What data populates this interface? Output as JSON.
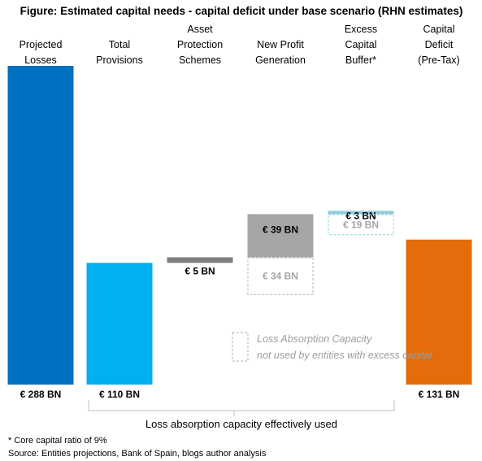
{
  "chart_data": {
    "type": "waterfall",
    "title": "Figure: Estimated capital needs - capital deficit under base scenario (RHN estimates)",
    "unit": "€ BN",
    "ylim": [
      0,
      288
    ],
    "categories": [
      [
        "Projected",
        "Losses"
      ],
      [
        "Total",
        "Provisions"
      ],
      [
        "Asset",
        "Protection",
        "Schemes"
      ],
      [
        "New Profit",
        "Generation"
      ],
      [
        "Excess",
        "Capital",
        "Buffer*"
      ],
      [
        "Capital",
        "Deficit",
        "(Pre-Tax)"
      ]
    ],
    "steps": [
      {
        "kind": "total",
        "value": 288,
        "label": "€ 288 BN",
        "color": "#0070c0"
      },
      {
        "kind": "used",
        "value": 110,
        "label": "€ 110 BN",
        "color": "#00b0f0"
      },
      {
        "kind": "used",
        "value": 5,
        "label": "€ 5 BN",
        "color": "#7f7f7f"
      },
      {
        "kind": "used",
        "value": 39,
        "unused": 34,
        "label": "€ 39 BN",
        "unused_label": "€ 34 BN",
        "color": "#a6a6a6"
      },
      {
        "kind": "used",
        "value": 3,
        "unused": 19,
        "label": "€ 3 BN",
        "unused_label": "€ 19 BN",
        "color": "#92cddc"
      },
      {
        "kind": "total",
        "value": 131,
        "label": "€ 131 BN",
        "color": "#e46c0a"
      }
    ],
    "legend": [
      "Loss Absorption Capacity",
      "not used by entities with excess capital"
    ],
    "bracket_label": "Loss absorption capacity effectively used"
  },
  "footnotes": [
    "* Core capital ratio of 9%",
    "Source: Entities projections, Bank of Spain, blogs author analysis"
  ]
}
